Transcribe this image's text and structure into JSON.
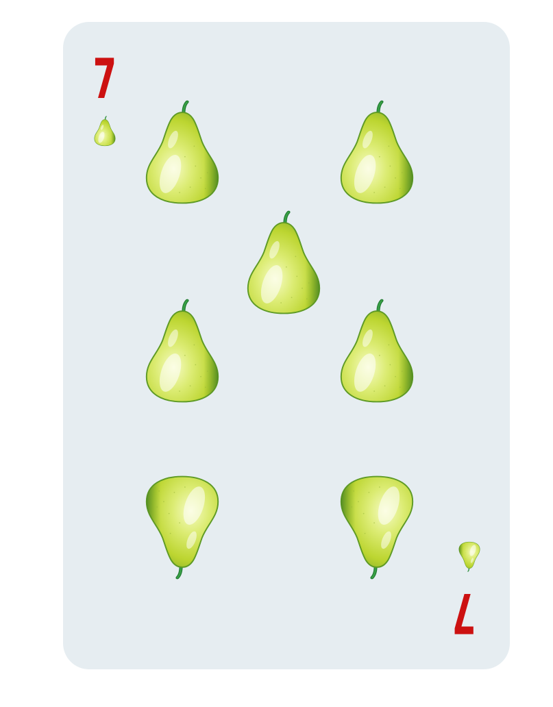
{
  "card": {
    "rank": "7",
    "suit_icon": "pear-icon",
    "pip_count": 7,
    "colors": {
      "rank": "#cc1111",
      "background": "#e6edf1",
      "pear_light": "#f4fab6",
      "pear_mid": "#c5dc3a",
      "pear_dark": "#7aa82a",
      "stem": "#2e9a3c"
    }
  }
}
